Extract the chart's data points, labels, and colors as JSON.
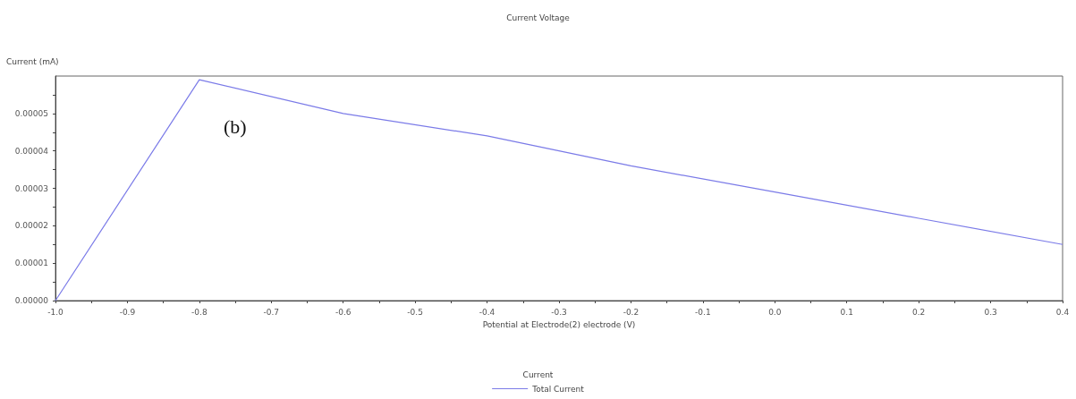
{
  "chart_data": {
    "type": "line",
    "title": "Current Voltage",
    "xlabel": "Potential at Electrode(2) electrode (V)",
    "ylabel": "Current (mA)",
    "legend_title": "Current",
    "annotations": [
      "(b)"
    ],
    "x": [
      -1.0,
      -0.8,
      -0.6,
      -0.4,
      -0.2,
      0.0,
      0.2,
      0.4
    ],
    "series": [
      {
        "name": "Total Current",
        "color": "#7b7be8",
        "values": [
          0,
          5.9e-05,
          5e-05,
          4.4e-05,
          3.6e-05,
          2.9e-05,
          2.2e-05,
          1.5e-05
        ]
      }
    ],
    "xlim": [
      -1.0,
      0.4
    ],
    "ylim": [
      0,
      6e-05
    ],
    "xticks": [
      {
        "value": -1.0,
        "label": "-1.0"
      },
      -0.9,
      -0.8,
      -0.7,
      -0.6,
      -0.5,
      -0.4,
      -0.3,
      -0.2,
      -0.1,
      {
        "value": 0.0,
        "label": "0.0"
      },
      0.1,
      0.2,
      0.3,
      0.4
    ],
    "yticks": [
      {
        "value": 0,
        "label": "0.00000"
      },
      {
        "value": 1e-05,
        "label": "0.00001"
      },
      {
        "value": 2e-05,
        "label": "0.00002"
      },
      {
        "value": 3e-05,
        "label": "0.00003"
      },
      {
        "value": 4e-05,
        "label": "0.00004"
      },
      {
        "value": 5e-05,
        "label": "0.00005"
      }
    ],
    "grid": false,
    "legend": "bottom",
    "marker": "none",
    "line_style": "solid"
  }
}
